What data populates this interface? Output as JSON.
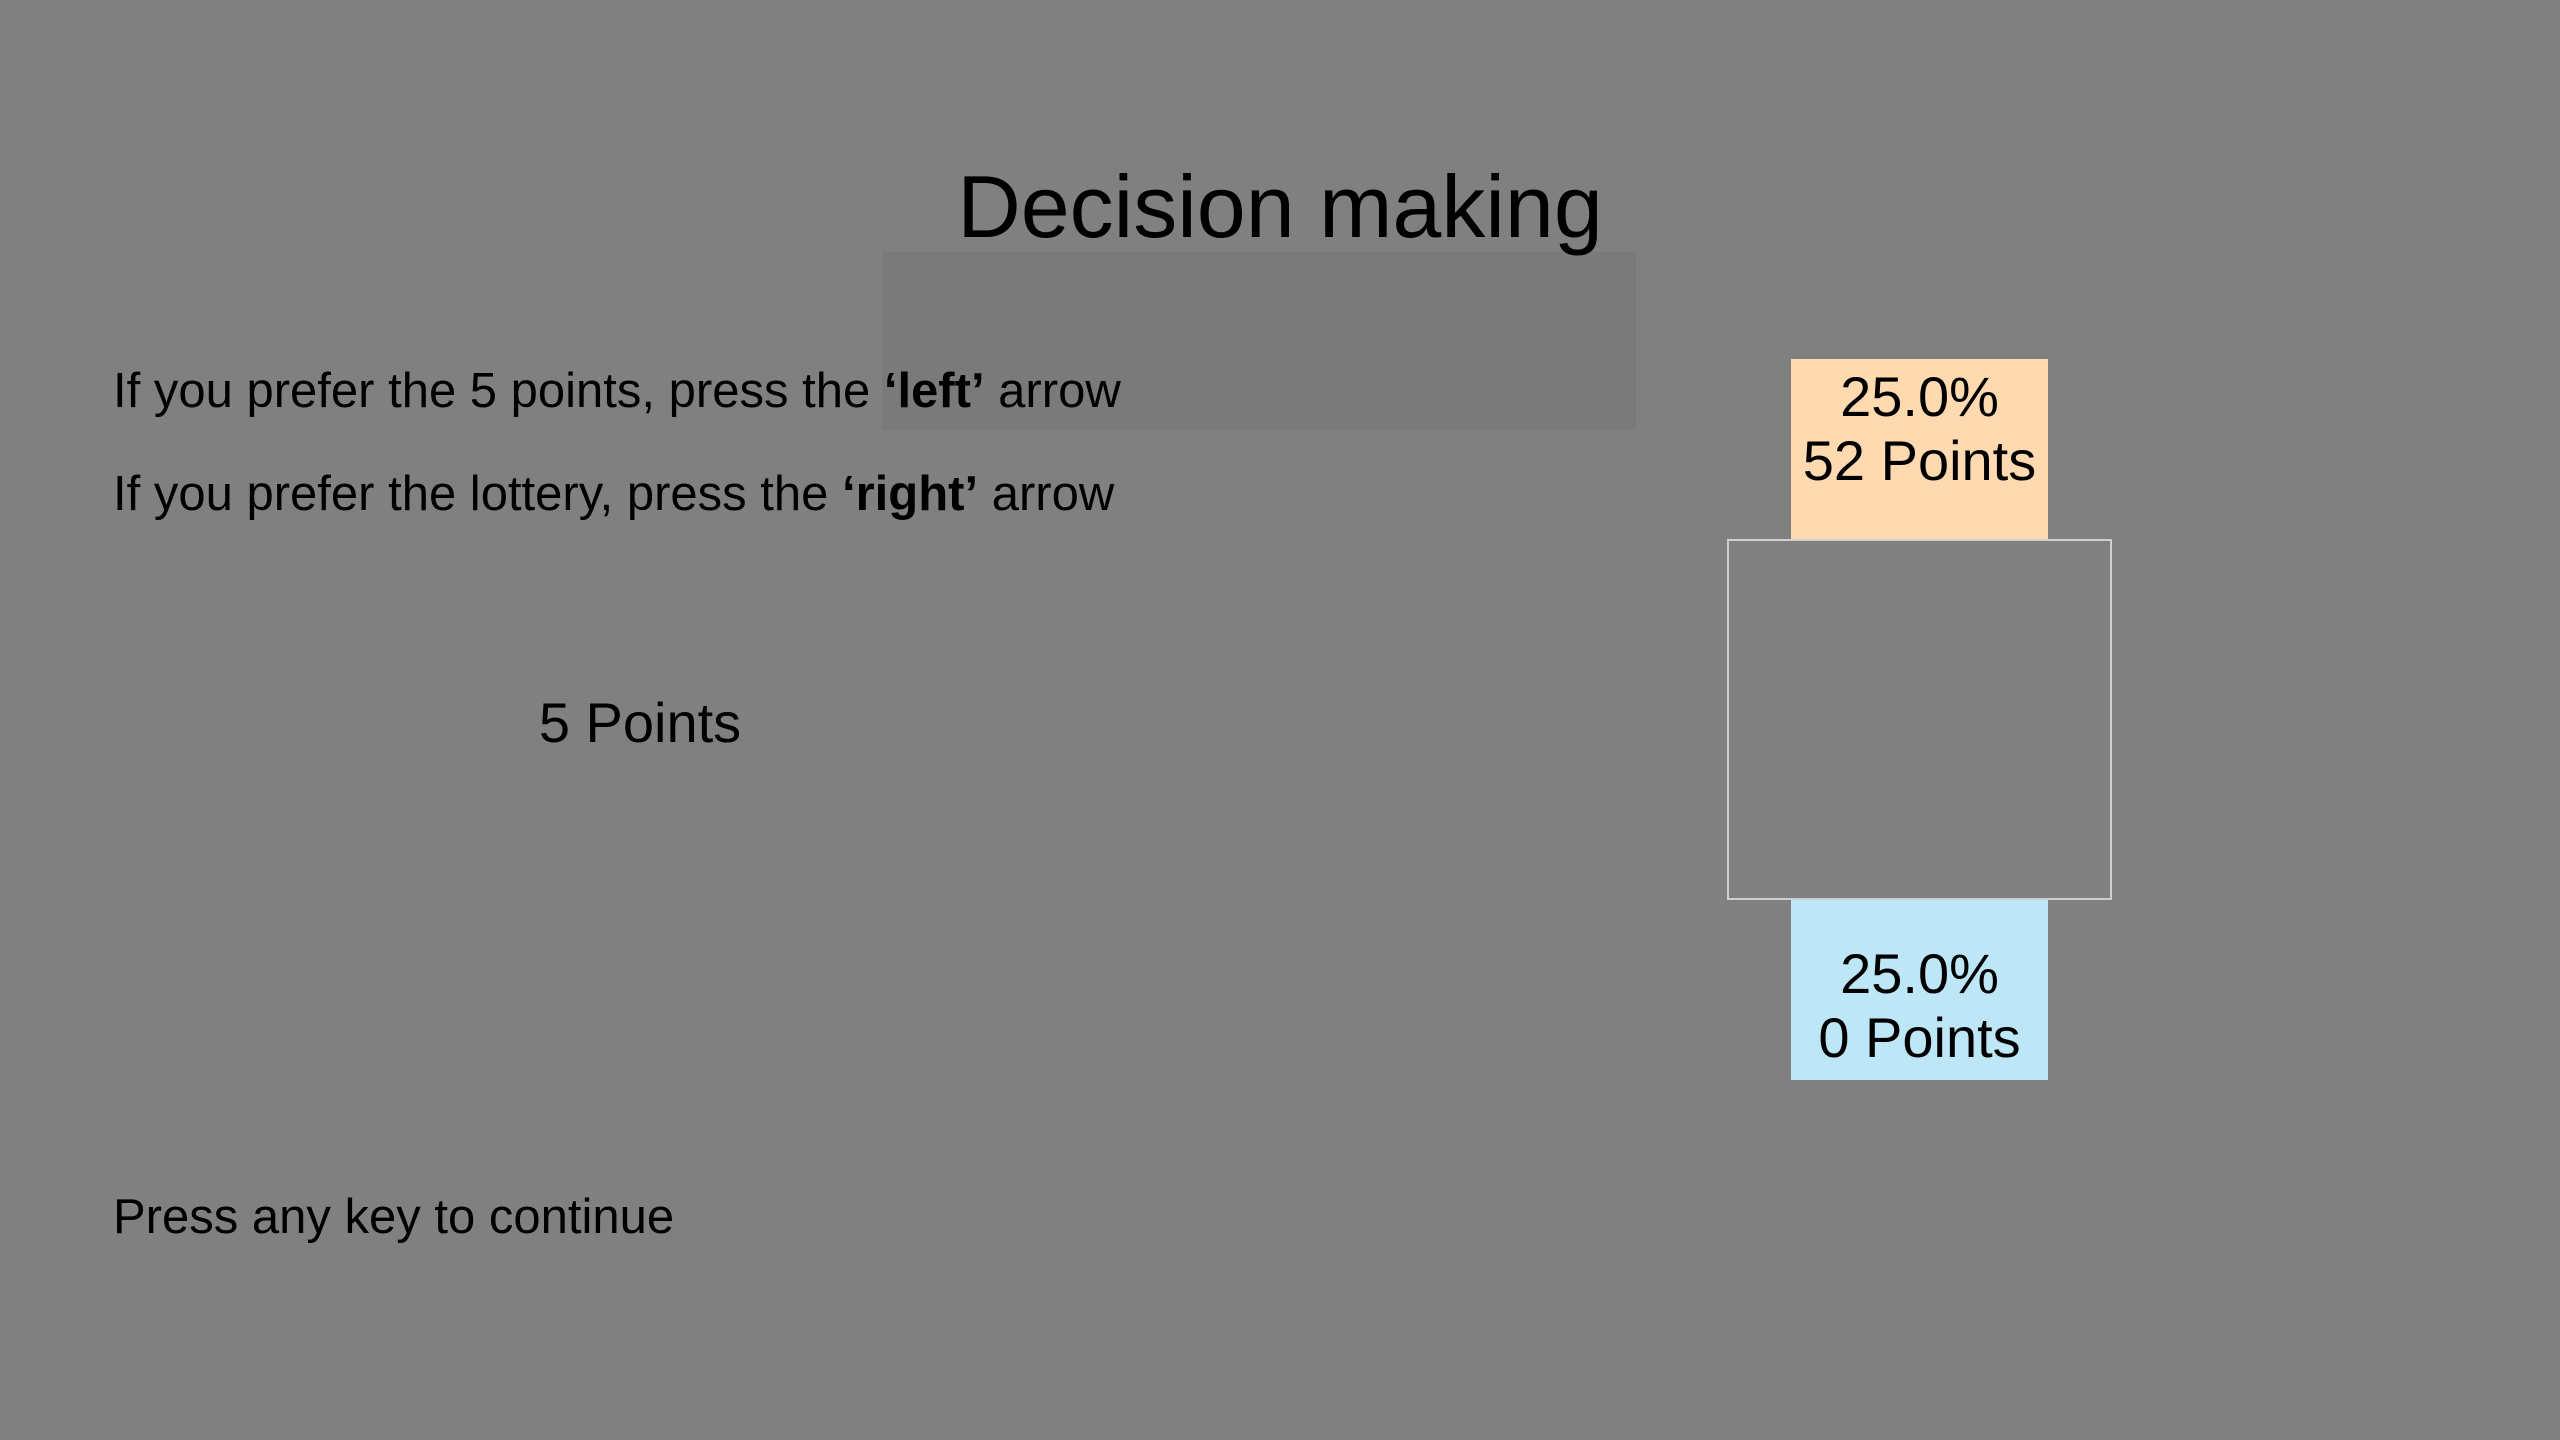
{
  "title": "Decision making",
  "instructions": {
    "sure_option": {
      "before": "If you prefer the 5 points, press the ",
      "key": "‘left’",
      "after": " arrow"
    },
    "lottery_option": {
      "before": "If you prefer the lottery, press the ",
      "key": "‘right’",
      "after": " arrow"
    }
  },
  "sure_amount": "5 Points",
  "lottery": {
    "top_outcome": {
      "probability": "25.0%",
      "points": "52 Points",
      "color": "#FFDAB0"
    },
    "bottom_outcome": {
      "probability": "25.0%",
      "points": "0 Points",
      "color": "#BDE6F6"
    },
    "box_border_color": "#CFCFCF"
  },
  "continue_prompt": "Press any key to continue",
  "colors": {
    "background": "#808080",
    "text": "#000000"
  }
}
